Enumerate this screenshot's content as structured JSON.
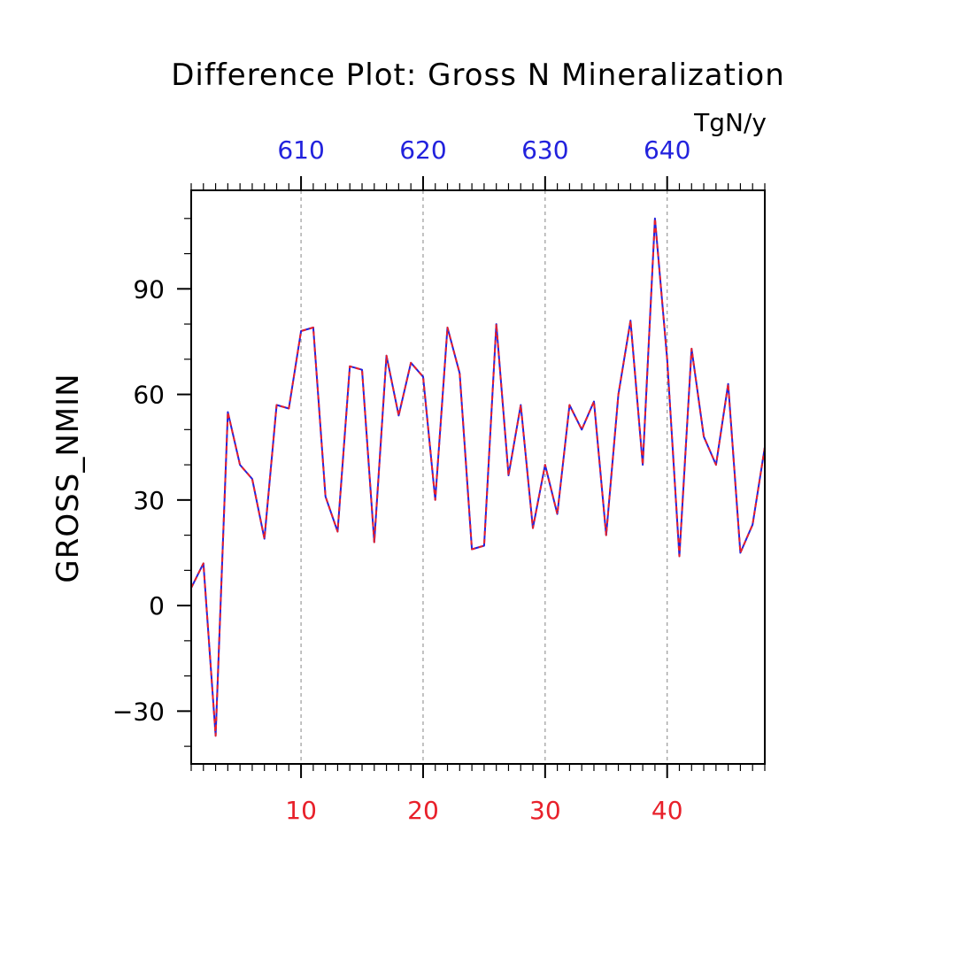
{
  "chart_data": {
    "type": "line",
    "title": "Difference Plot: Gross N Mineralization",
    "ylabel": "GROSS_NMIN",
    "top_axis_units": "TgN/y",
    "xlim": [
      1,
      48
    ],
    "ylim": [
      -45,
      118
    ],
    "grid": "vertical-dashed-at-major-ticks",
    "bottom_ticks": [
      10,
      20,
      30,
      40
    ],
    "top_ticks": [
      {
        "at": 10,
        "label": "610"
      },
      {
        "at": 20,
        "label": "620"
      },
      {
        "at": 30,
        "label": "630"
      },
      {
        "at": 40,
        "label": "640"
      }
    ],
    "y_ticks": [
      -30,
      0,
      30,
      60,
      90
    ],
    "x": [
      1,
      2,
      3,
      4,
      5,
      6,
      7,
      8,
      9,
      10,
      11,
      12,
      13,
      14,
      15,
      16,
      17,
      18,
      19,
      20,
      21,
      22,
      23,
      24,
      25,
      26,
      27,
      28,
      29,
      30,
      31,
      32,
      33,
      34,
      35,
      36,
      37,
      38,
      39,
      40,
      41,
      42,
      43,
      44,
      45,
      46,
      47,
      48
    ],
    "series": [
      {
        "color": "#2222dd",
        "style": "solid",
        "values": [
          5,
          12,
          -37,
          55,
          40,
          36,
          19,
          57,
          56,
          78,
          79,
          31,
          21,
          68,
          67,
          18,
          71,
          54,
          69,
          65,
          30,
          79,
          66,
          16,
          17,
          80,
          37,
          57,
          22,
          40,
          26,
          57,
          50,
          58,
          20,
          60,
          81,
          40,
          110,
          70,
          14,
          73,
          48,
          40,
          63,
          15,
          23,
          45
        ]
      },
      {
        "color": "#e8202a",
        "style": "dashed",
        "values": [
          5,
          12,
          -37,
          55,
          40,
          36,
          19,
          57,
          56,
          78,
          79,
          31,
          21,
          68,
          67,
          18,
          71,
          54,
          69,
          65,
          30,
          79,
          66,
          16,
          17,
          80,
          37,
          57,
          22,
          40,
          26,
          57,
          50,
          58,
          20,
          60,
          81,
          40,
          110,
          70,
          14,
          73,
          48,
          40,
          63,
          15,
          23,
          45
        ]
      }
    ]
  }
}
